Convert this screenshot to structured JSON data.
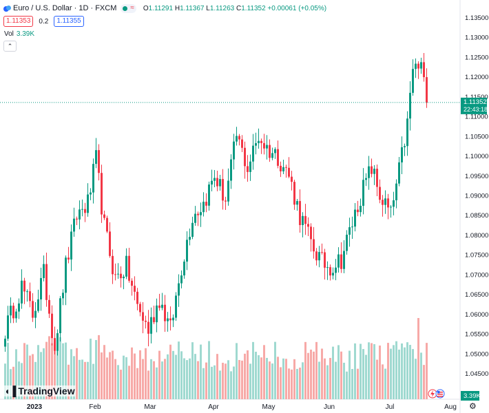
{
  "header": {
    "title": "Euro / U.S. Dollar · 1D · FXCM",
    "open_key": "O",
    "open": "1.11291",
    "high_key": "H",
    "high": "1.11367",
    "low_key": "L",
    "low": "1.11263",
    "close_key": "C",
    "close": "1.11352",
    "change": "+0.00061 (+0.05%)"
  },
  "quote": {
    "bid": "1.11353",
    "spread": "0.2",
    "ask": "1.11355"
  },
  "volume": {
    "label": "Vol",
    "value": "3.39K"
  },
  "collapse_glyph": "⌃",
  "branding": {
    "logo_mark": "◖▐",
    "logo_text": "TradingView"
  },
  "icons": {
    "settings": "gear-icon",
    "collapse": "chevron-up-icon",
    "flash": "lightning-icon",
    "flag": "us-flag-icon"
  },
  "colors": {
    "up": "#089981",
    "down": "#f23645",
    "up_volume": "#9fd9d0",
    "down_volume": "#f7a9a7",
    "price_line": "#089981"
  },
  "chart_data": {
    "type": "candlestick",
    "ylim": [
      1.043,
      1.137
    ],
    "price_ticks": [
      "1.04500",
      "1.05000",
      "1.05500",
      "1.06000",
      "1.06500",
      "1.07000",
      "1.07500",
      "1.08000",
      "1.08500",
      "1.09000",
      "1.09500",
      "1.10000",
      "1.10500",
      "1.11000",
      "1.11500",
      "1.12000",
      "1.12500",
      "1.13000",
      "1.13500"
    ],
    "time_labels": [
      {
        "label": "2023",
        "index": 11
      },
      {
        "label": "Feb",
        "index": 33
      },
      {
        "label": "Mar",
        "index": 53
      },
      {
        "label": "Apr",
        "index": 76
      },
      {
        "label": "May",
        "index": 96
      },
      {
        "label": "Jun",
        "index": 118
      },
      {
        "label": "Jul",
        "index": 140
      },
      {
        "label": "Aug",
        "index": 162
      }
    ],
    "last_price": {
      "value": 1.11352,
      "label": "1.11352",
      "countdown": "22:43:18"
    },
    "volume_label": "3.39K",
    "close_seed": [
      [
        0,
        1.056
      ],
      [
        6,
        1.067
      ],
      [
        10,
        1.06
      ],
      [
        14,
        1.07
      ],
      [
        18,
        1.052
      ],
      [
        22,
        1.072
      ],
      [
        26,
        1.085
      ],
      [
        30,
        1.088
      ],
      [
        33,
        1.099
      ],
      [
        36,
        1.082
      ],
      [
        40,
        1.069
      ],
      [
        44,
        1.072
      ],
      [
        48,
        1.062
      ],
      [
        52,
        1.056
      ],
      [
        56,
        1.064
      ],
      [
        60,
        1.056
      ],
      [
        64,
        1.072
      ],
      [
        68,
        1.085
      ],
      [
        72,
        1.088
      ],
      [
        76,
        1.095
      ],
      [
        80,
        1.089
      ],
      [
        84,
        1.105
      ],
      [
        88,
        1.097
      ],
      [
        92,
        1.105
      ],
      [
        95,
        1.102
      ],
      [
        99,
        1.1
      ],
      [
        103,
        1.095
      ],
      [
        107,
        1.085
      ],
      [
        111,
        1.078
      ],
      [
        115,
        1.073
      ],
      [
        118,
        1.072
      ],
      [
        122,
        1.074
      ],
      [
        126,
        1.083
      ],
      [
        129,
        1.09
      ],
      [
        133,
        1.097
      ],
      [
        136,
        1.09
      ],
      [
        140,
        1.085
      ],
      [
        143,
        1.096
      ],
      [
        146,
        1.108
      ],
      [
        148,
        1.122
      ],
      [
        151,
        1.1225
      ],
      [
        153,
        1.1135
      ]
    ],
    "n_candles": 154
  }
}
